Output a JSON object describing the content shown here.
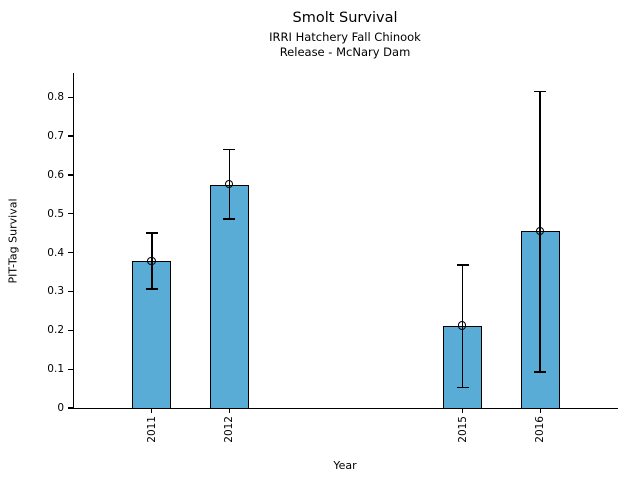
{
  "chart_data": {
    "type": "bar",
    "title": "Smolt Survival",
    "subtitle_line1": "IRRI Hatchery Fall Chinook",
    "subtitle_line2": "Release - McNary Dam",
    "xlabel": "Year",
    "ylabel": "PIT-Tag Survival",
    "categories": [
      "2011",
      "2012",
      "2015",
      "2016"
    ],
    "x": [
      2011,
      2012,
      2015,
      2016
    ],
    "values": [
      0.378,
      0.575,
      0.211,
      0.455
    ],
    "error_low": [
      0.306,
      0.486,
      0.053,
      0.092
    ],
    "error_high": [
      0.451,
      0.666,
      0.368,
      0.815
    ],
    "xlim": [
      2010,
      2017
    ],
    "ylim": [
      0,
      0.8625
    ],
    "yticks": [
      0,
      0.1,
      0.2,
      0.3,
      0.4,
      0.5,
      0.6,
      0.7,
      0.8
    ],
    "ytick_labels": [
      "0",
      "0.1",
      "0.2",
      "0.3",
      "0.4",
      "0.5",
      "0.6",
      "0.7",
      "0.8"
    ],
    "x_tick_label_rotation": 90,
    "bar_width_years": 0.5,
    "bar_color": "#58ACD6",
    "bar_edge_color": "#000000",
    "error_color": "#000000",
    "marker": "open-circle",
    "grid": false,
    "legend": false,
    "background_color": "#FFFFFF"
  }
}
